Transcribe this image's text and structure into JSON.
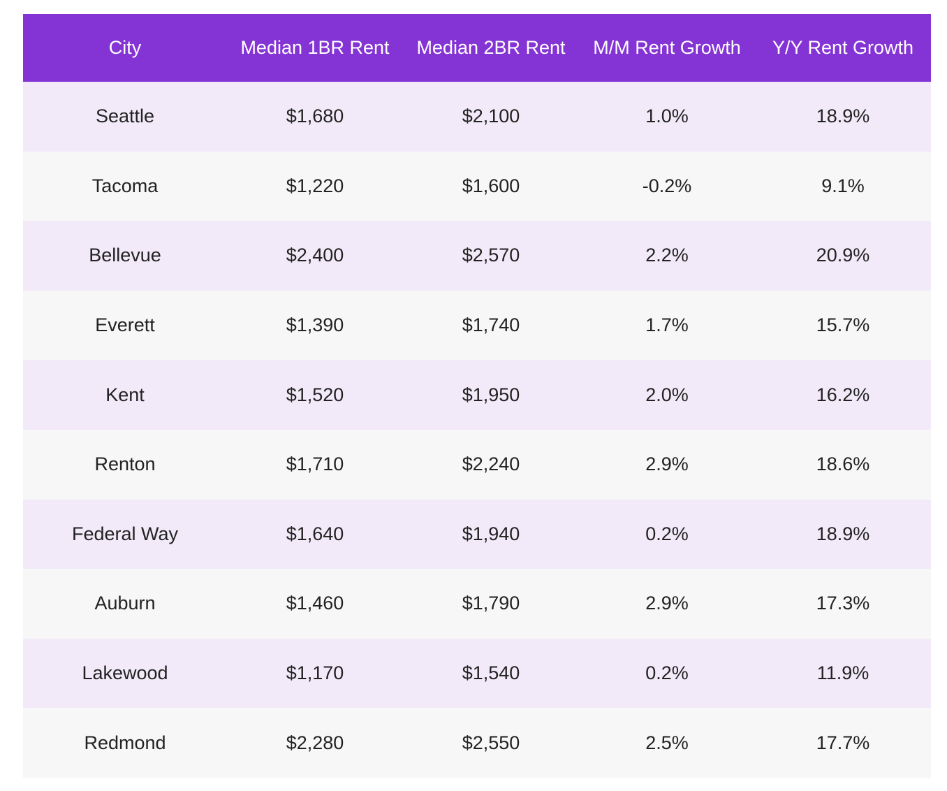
{
  "table": {
    "headers": [
      "City",
      "Median 1BR Rent",
      "Median 2BR Rent",
      "M/M Rent Growth",
      "Y/Y Rent Growth"
    ],
    "rows": [
      [
        "Seattle",
        "$1,680",
        "$2,100",
        "1.0%",
        "18.9%"
      ],
      [
        "Tacoma",
        "$1,220",
        "$1,600",
        "-0.2%",
        "9.1%"
      ],
      [
        "Bellevue",
        "$2,400",
        "$2,570",
        "2.2%",
        "20.9%"
      ],
      [
        "Everett",
        "$1,390",
        "$1,740",
        "1.7%",
        "15.7%"
      ],
      [
        "Kent",
        "$1,520",
        "$1,950",
        "2.0%",
        "16.2%"
      ],
      [
        "Renton",
        "$1,710",
        "$2,240",
        "2.9%",
        "18.6%"
      ],
      [
        "Federal Way",
        "$1,640",
        "$1,940",
        "0.2%",
        "18.9%"
      ],
      [
        "Auburn",
        "$1,460",
        "$1,790",
        "2.9%",
        "17.3%"
      ],
      [
        "Lakewood",
        "$1,170",
        "$1,540",
        "0.2%",
        "11.9%"
      ],
      [
        "Redmond",
        "$2,280",
        "$2,550",
        "2.5%",
        "17.7%"
      ]
    ]
  },
  "colors": {
    "header_bg": "#8433d4",
    "row_odd_bg": "#f2eaf8",
    "row_even_bg": "#f7f7f7"
  }
}
